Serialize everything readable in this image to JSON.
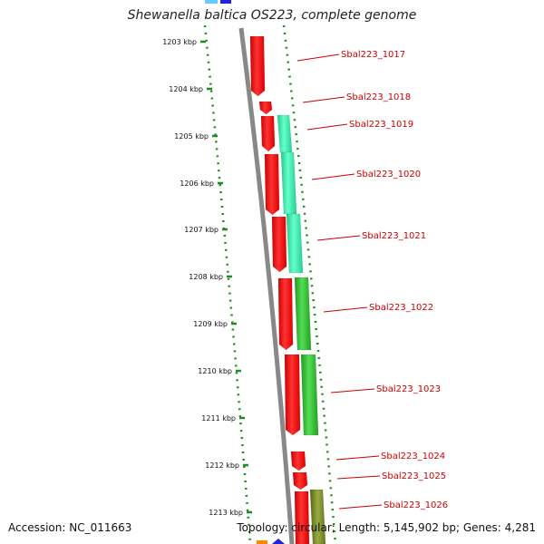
{
  "title": "Shewanella baltica OS223, complete genome",
  "accession": "Accession: NC_011663",
  "stats": "Topology: circular; Length: 5,145,902 bp; Genes: 4,281",
  "ruler": [
    {
      "label": "1203 kbp"
    },
    {
      "label": "1204 kbp"
    },
    {
      "label": "1205 kbp"
    },
    {
      "label": "1206 kbp"
    },
    {
      "label": "1207 kbp"
    },
    {
      "label": "1208 kbp"
    },
    {
      "label": "1209 kbp"
    },
    {
      "label": "1210 kbp"
    },
    {
      "label": "1211 kbp"
    },
    {
      "label": "1212 kbp"
    },
    {
      "label": "1213 kbp"
    }
  ],
  "gene_labels": [
    "Sbal223_1017",
    "Sbal223_1018",
    "Sbal223_1019",
    "Sbal223_1020",
    "Sbal223_1021",
    "Sbal223_1022",
    "Sbal223_1023",
    "Sbal223_1024",
    "Sbal223_1025",
    "Sbal223_1026"
  ],
  "colors": {
    "cds": "#ff0000",
    "track_cyan": "#33e8a8",
    "track_green": "#33bb33",
    "track_olive": "#778822",
    "backbone": "#888888",
    "dotted": "#228b22",
    "label": "#cc0000"
  }
}
